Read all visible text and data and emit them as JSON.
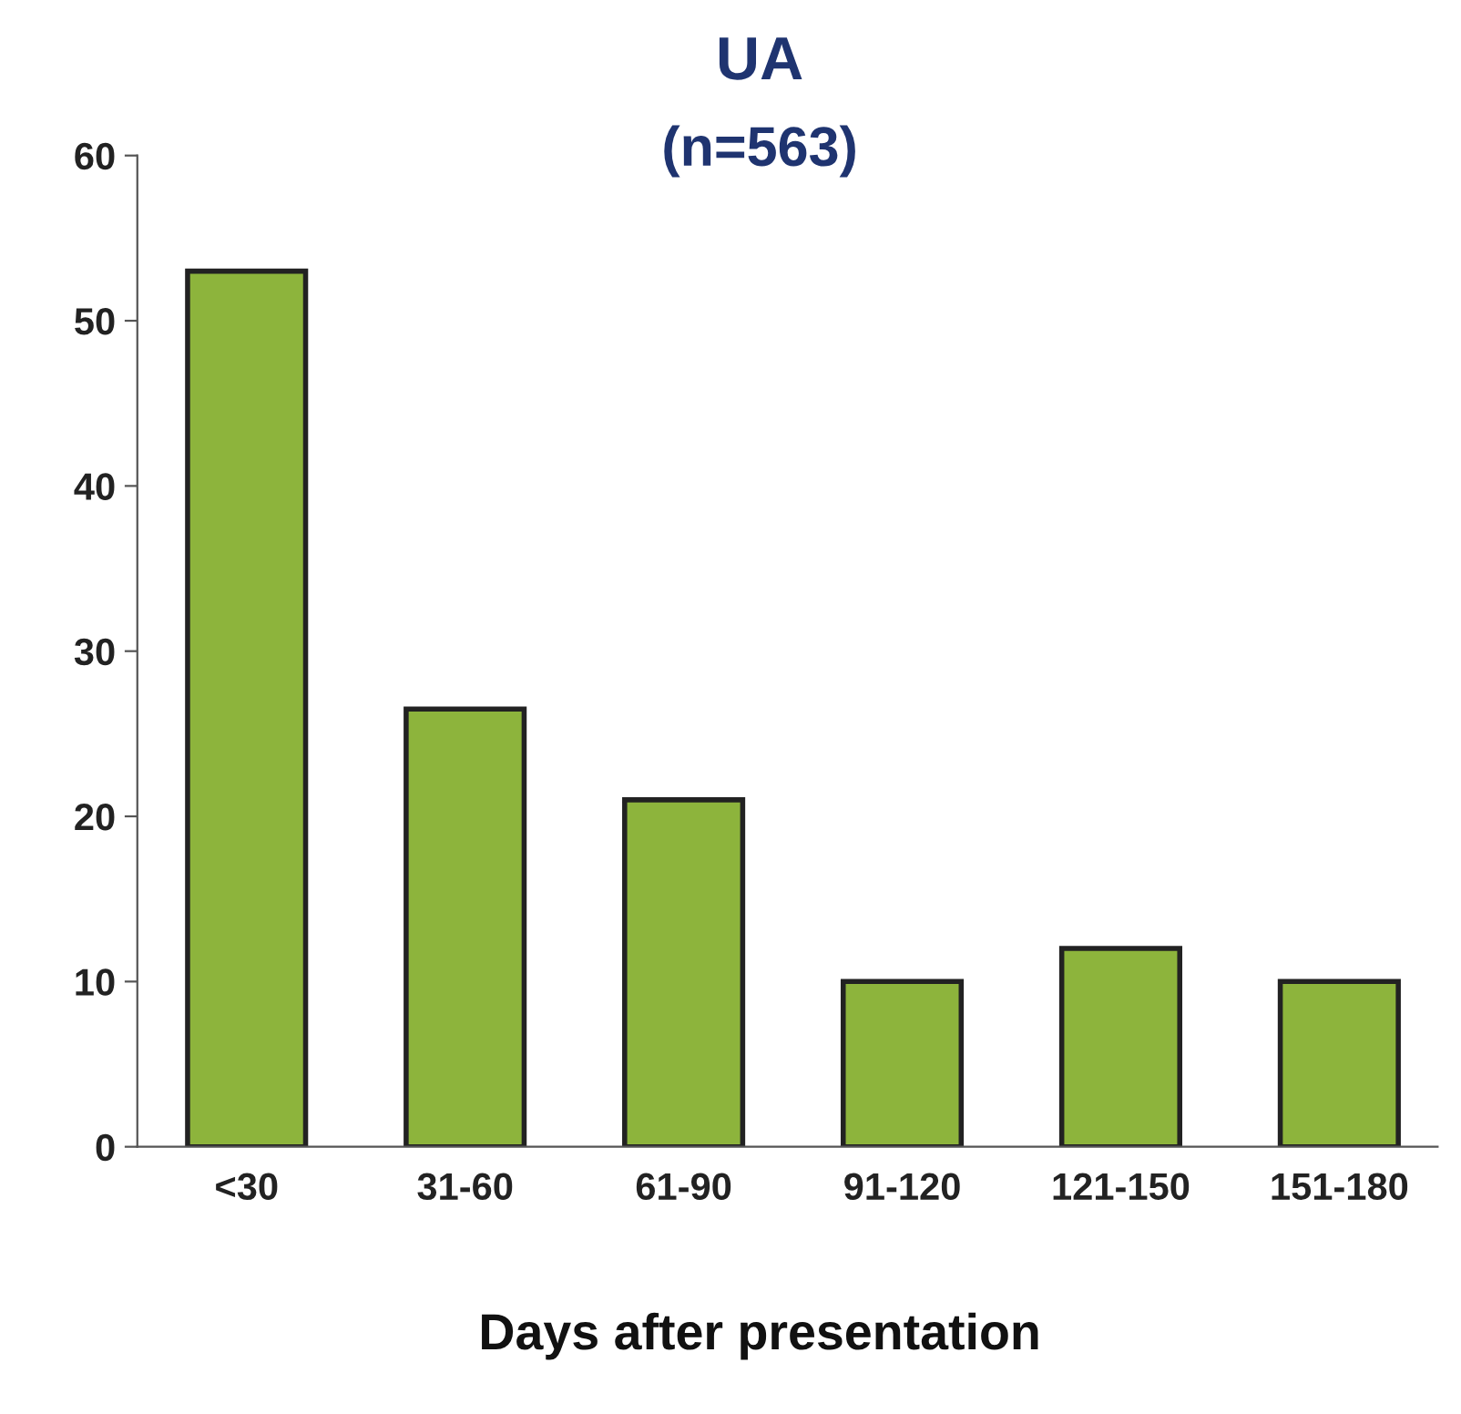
{
  "chart_data": {
    "type": "bar",
    "title": "UA",
    "subtitle": "(n=563)",
    "xlabel": "Days after presentation",
    "categories": [
      "<30",
      "31-60",
      "61-90",
      "91-120",
      "121-150",
      "151-180"
    ],
    "values": [
      53,
      26.5,
      21,
      10,
      12,
      10
    ],
    "color": "#8db43c",
    "ylim": [
      0,
      60
    ],
    "yticks": [
      0,
      10,
      20,
      30,
      40,
      50,
      60
    ],
    "grid": false
  }
}
